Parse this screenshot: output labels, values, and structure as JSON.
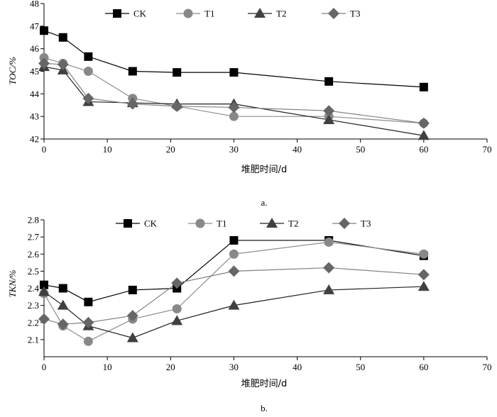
{
  "chart_data": [
    {
      "type": "line",
      "caption": "a.",
      "xlabel": "堆肥时间/d",
      "ylabel": "TOC/%",
      "xlim": [
        0,
        70
      ],
      "ylim": [
        42,
        48
      ],
      "xticks": [
        0,
        10,
        20,
        30,
        40,
        50,
        60,
        70
      ],
      "yticks": [
        42,
        43,
        44,
        45,
        46,
        47,
        48
      ],
      "grid": false,
      "legend_position": "top",
      "x": [
        0,
        3,
        7,
        14,
        21,
        30,
        45,
        60
      ],
      "series": [
        {
          "name": "CK",
          "marker": "square",
          "color": "#000000",
          "line": "#000000",
          "values": [
            46.8,
            46.5,
            45.65,
            45.0,
            44.95,
            44.95,
            44.55,
            44.3
          ]
        },
        {
          "name": "T1",
          "marker": "circle",
          "color": "#888888",
          "line": "#8c8c8c",
          "values": [
            45.6,
            45.35,
            45.0,
            43.8,
            43.45,
            43.0,
            43.0,
            42.7
          ]
        },
        {
          "name": "T2",
          "marker": "triangle",
          "color": "#404040",
          "line": "#202020",
          "values": [
            45.2,
            45.05,
            43.65,
            43.6,
            43.55,
            43.55,
            42.85,
            42.15
          ]
        },
        {
          "name": "T3",
          "marker": "diamond",
          "color": "#666666",
          "line": "#808080",
          "values": [
            45.35,
            45.3,
            43.8,
            43.55,
            43.45,
            43.4,
            43.25,
            42.7
          ]
        }
      ]
    },
    {
      "type": "line",
      "caption": "b.",
      "xlabel": "堆肥时间/d",
      "ylabel": "TKN/%",
      "xlim": [
        0,
        70
      ],
      "ylim": [
        2.0,
        2.8
      ],
      "xticks": [
        0,
        10,
        20,
        30,
        40,
        50,
        60,
        70
      ],
      "yticks": [
        2.1,
        2.2,
        2.3,
        2.4,
        2.5,
        2.6,
        2.7,
        2.8
      ],
      "grid": false,
      "legend_position": "top",
      "x": [
        0,
        3,
        7,
        14,
        21,
        30,
        45,
        60
      ],
      "series": [
        {
          "name": "CK",
          "marker": "square",
          "color": "#000000",
          "line": "#000000",
          "values": [
            2.42,
            2.4,
            2.32,
            2.39,
            2.4,
            2.68,
            2.68,
            2.59
          ]
        },
        {
          "name": "T1",
          "marker": "circle",
          "color": "#888888",
          "line": "#8c8c8c",
          "values": [
            2.37,
            2.18,
            2.09,
            2.22,
            2.28,
            2.6,
            2.67,
            2.6
          ]
        },
        {
          "name": "T2",
          "marker": "triangle",
          "color": "#404040",
          "line": "#202020",
          "values": [
            2.38,
            2.3,
            2.18,
            2.11,
            2.21,
            2.3,
            2.39,
            2.41
          ]
        },
        {
          "name": "T3",
          "marker": "diamond",
          "color": "#666666",
          "line": "#808080",
          "values": [
            2.22,
            2.19,
            2.2,
            2.24,
            2.43,
            2.5,
            2.52,
            2.48
          ]
        }
      ]
    }
  ]
}
